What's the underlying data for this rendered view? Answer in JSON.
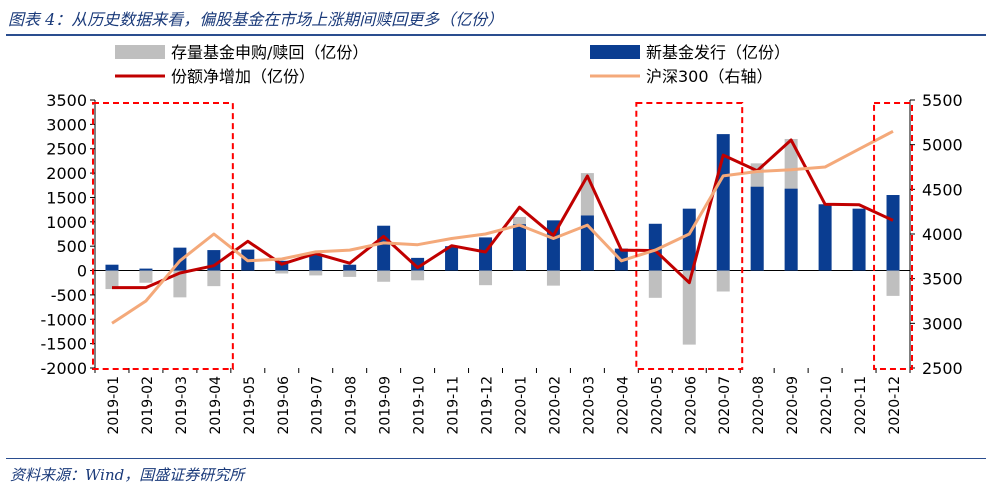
{
  "page": {
    "title": "图表 4：从历史数据来看，偏股基金在市场上涨期间赎回更多（亿份）",
    "source": "资料来源：Wind，国盛证券研究所"
  },
  "chart_data": {
    "type": "bar",
    "categories": [
      "2019-01",
      "2019-02",
      "2019-03",
      "2019-04",
      "2019-05",
      "2019-06",
      "2019-07",
      "2019-08",
      "2019-09",
      "2019-10",
      "2019-11",
      "2019-12",
      "2020-01",
      "2020-02",
      "2020-03",
      "2020-04",
      "2020-05",
      "2020-06",
      "2020-07",
      "2020-08",
      "2020-09",
      "2020-10",
      "2020-11",
      "2020-12"
    ],
    "series": [
      {
        "name": "存量基金申购/赎回（亿份）",
        "kind": "bar",
        "axis": "left",
        "color": "#bfbfbf",
        "values": [
          -380,
          -250,
          -550,
          -320,
          150,
          -60,
          -100,
          -130,
          -230,
          -200,
          0,
          -300,
          1100,
          -310,
          2000,
          0,
          -560,
          -1520,
          -430,
          2200,
          2700,
          0,
          0,
          -520
        ]
      },
      {
        "name": "新基金发行（亿份）",
        "kind": "bar",
        "axis": "left",
        "color": "#0a3d91",
        "values": [
          120,
          40,
          470,
          420,
          430,
          200,
          320,
          120,
          920,
          260,
          500,
          680,
          950,
          1030,
          1130,
          450,
          960,
          1270,
          2800,
          1720,
          1680,
          1360,
          1270,
          1550
        ]
      },
      {
        "name": "份额净增加（亿份）",
        "kind": "line",
        "axis": "left",
        "color": "#c00000",
        "values": [
          -350,
          -350,
          -50,
          100,
          600,
          130,
          350,
          150,
          700,
          60,
          510,
          380,
          1300,
          720,
          1940,
          420,
          410,
          -250,
          2370,
          2050,
          2680,
          1360,
          1350,
          1030
        ]
      },
      {
        "name": "沪深300（右轴）",
        "kind": "line",
        "axis": "right",
        "color": "#f4a97a",
        "values": [
          3000,
          3250,
          3700,
          4000,
          3700,
          3720,
          3800,
          3820,
          3900,
          3880,
          3950,
          4000,
          4100,
          3950,
          4100,
          3700,
          3820,
          4000,
          4650,
          4700,
          4720,
          4750,
          4950,
          5150
        ]
      }
    ],
    "y_left": {
      "min": -2000,
      "max": 3500,
      "step": 500,
      "ticks": [
        "3500",
        "3000",
        "2500",
        "2000",
        "1500",
        "1000",
        "500",
        "0",
        "-500",
        "-1000",
        "-1500",
        "-2000"
      ]
    },
    "y_right": {
      "min": 2500,
      "max": 5500,
      "step": 500,
      "ticks": [
        "5500",
        "5000",
        "4500",
        "4000",
        "3500",
        "3000",
        "2500"
      ]
    },
    "highlight_periods": [
      {
        "from": "2019-01",
        "to": "2019-04"
      },
      {
        "from": "2020-05",
        "to": "2020-07"
      },
      {
        "from": "2020-12",
        "to": "2020-12"
      }
    ],
    "highlight_color": "#ff0000",
    "legend_position": "top"
  }
}
